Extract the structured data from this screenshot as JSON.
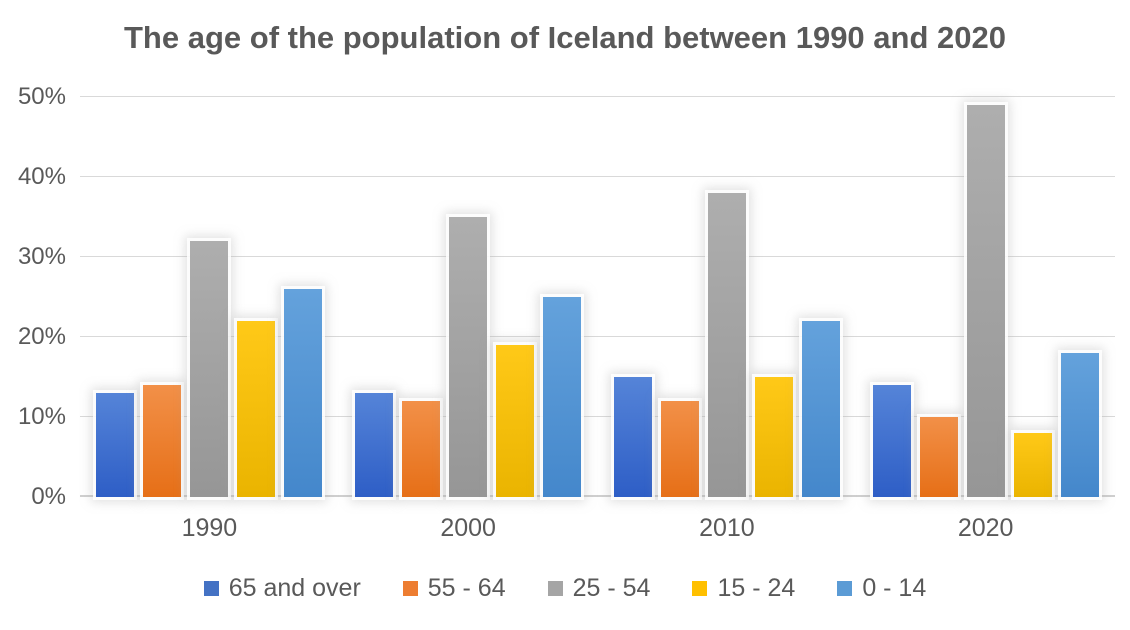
{
  "chart_data": {
    "type": "bar",
    "title": "The age of the population of Iceland between 1990 and 2020",
    "categories": [
      "1990",
      "2000",
      "2010",
      "2020"
    ],
    "series": [
      {
        "name": "65 and over",
        "color": "#4472C4",
        "gradient_top": "#5584d8",
        "gradient_bottom": "#2e5ec6",
        "values": [
          13,
          13,
          15,
          14
        ]
      },
      {
        "name": "55 - 64",
        "color": "#ED7D31",
        "gradient_top": "#f29048",
        "gradient_bottom": "#e66f17",
        "values": [
          14,
          12,
          12,
          10
        ]
      },
      {
        "name": "25 - 54",
        "color": "#A5A5A5",
        "gradient_top": "#aeaeae",
        "gradient_bottom": "#969696",
        "values": [
          32,
          35,
          38,
          49
        ]
      },
      {
        "name": "15 - 24",
        "color": "#FFC000",
        "gradient_top": "#ffc918",
        "gradient_bottom": "#eab400",
        "values": [
          22,
          19,
          15,
          8
        ]
      },
      {
        "name": "0 - 14",
        "color": "#5B9BD5",
        "gradient_top": "#64a2dc",
        "gradient_bottom": "#4487cb",
        "values": [
          26,
          25,
          22,
          18
        ]
      }
    ],
    "xlabel": "",
    "ylabel": "",
    "ylim": [
      0,
      50
    ],
    "yticks": [
      "0%",
      "10%",
      "20%",
      "30%",
      "40%",
      "50%"
    ],
    "ytick_values": [
      0,
      10,
      20,
      30,
      40,
      50
    ],
    "grid": "horizontal",
    "legend_position": "bottom",
    "text_color": "#595959",
    "gridline_color": "#d9d9d9",
    "axis_line_color": "#cfcfcf",
    "background_color": "#ffffff"
  }
}
